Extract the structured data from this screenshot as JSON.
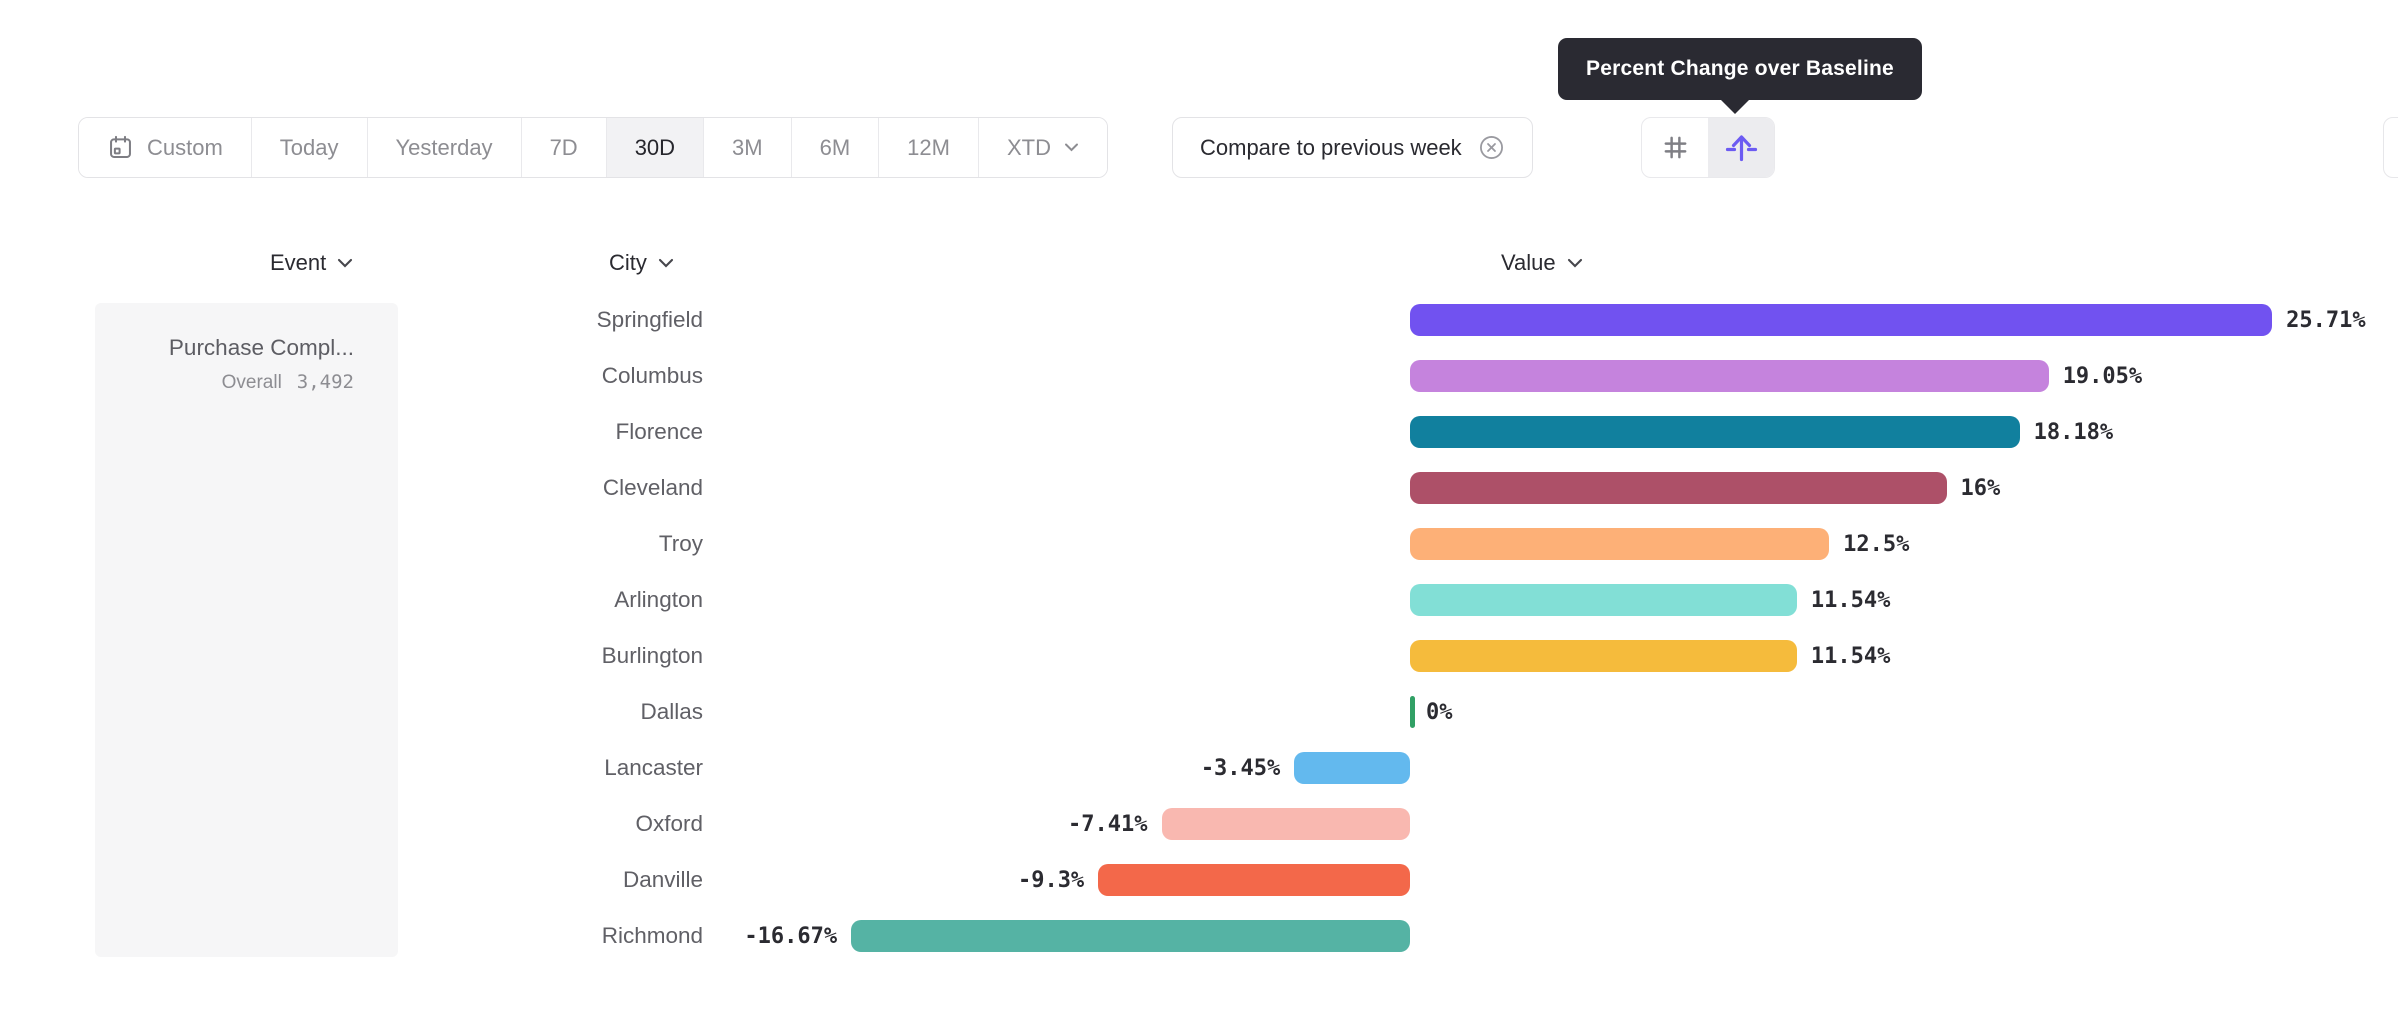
{
  "tooltip": {
    "text": "Percent Change over Baseline"
  },
  "toolbar": {
    "ranges": [
      {
        "label": "Custom",
        "icon": "calendar-icon",
        "selected": false,
        "chevron": false
      },
      {
        "label": "Today",
        "selected": false,
        "chevron": false
      },
      {
        "label": "Yesterday",
        "selected": false,
        "chevron": false
      },
      {
        "label": "7D",
        "selected": false,
        "chevron": false
      },
      {
        "label": "30D",
        "selected": true,
        "chevron": false
      },
      {
        "label": "3M",
        "selected": false,
        "chevron": false
      },
      {
        "label": "6M",
        "selected": false,
        "chevron": false
      },
      {
        "label": "12M",
        "selected": false,
        "chevron": false
      },
      {
        "label": "XTD",
        "selected": false,
        "chevron": true
      }
    ]
  },
  "compare_chip": {
    "label": "Compare to previous week",
    "close_icon": "circle-x-icon"
  },
  "view_toggle": {
    "options": [
      {
        "name": "numbers-view",
        "icon": "hash-icon",
        "selected": false
      },
      {
        "name": "percent-baseline-view",
        "icon": "baseline-arrow-icon",
        "selected": true
      }
    ]
  },
  "columns": [
    {
      "label": "Event"
    },
    {
      "label": "City"
    },
    {
      "label": "Value"
    }
  ],
  "event_panel": {
    "event_name": "Purchase Compl...",
    "metric_label": "Overall",
    "metric_value": "3,492"
  },
  "colors": {
    "accent": "#6c5bf2",
    "tooltip_bg": "#2a2a32",
    "selected_range_bg": "#f2f2f4"
  },
  "chart_data": {
    "type": "bar",
    "orientation": "horizontal",
    "title": "Percent Change over Baseline",
    "unit": "%",
    "baseline": 0,
    "xlim": [
      -16.67,
      25.71
    ],
    "grid": false,
    "categories": [
      "Springfield",
      "Columbus",
      "Florence",
      "Cleveland",
      "Troy",
      "Arlington",
      "Burlington",
      "Dallas",
      "Lancaster",
      "Oxford",
      "Danville",
      "Richmond"
    ],
    "values": [
      25.71,
      19.05,
      18.18,
      16,
      12.5,
      11.54,
      11.54,
      0,
      -3.45,
      -7.41,
      -9.3,
      -16.67
    ],
    "value_labels": [
      "25.71%",
      "19.05%",
      "18.18%",
      "16%",
      "12.5%",
      "11.54%",
      "11.54%",
      "0%",
      "-3.45%",
      "-7.41%",
      "-9.3%",
      "-16.67%"
    ],
    "bar_colors": [
      "#7152f0",
      "#c583dd",
      "#11809e",
      "#ad5068",
      "#fdb077",
      "#82dfd6",
      "#f5bb3c",
      "#31a065",
      "#63b9ee",
      "#f9b8b0",
      "#f3684a",
      "#55b3a4"
    ]
  }
}
